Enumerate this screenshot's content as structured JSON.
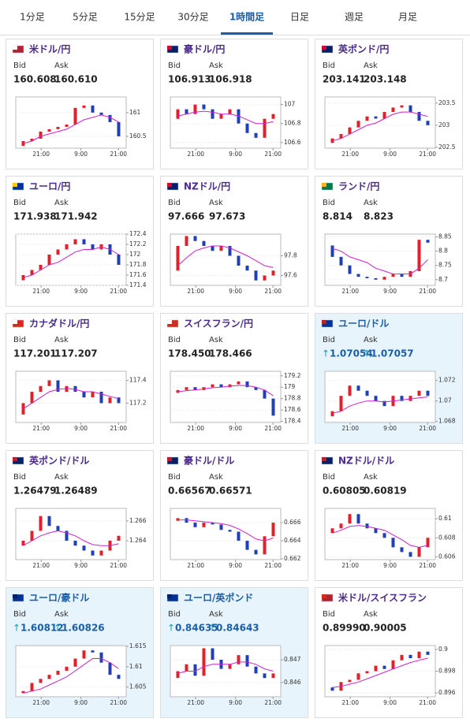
{
  "tabs": {
    "items": [
      "1分足",
      "5分足",
      "15分足",
      "30分足",
      "1時間足",
      "日足",
      "週足",
      "月足"
    ],
    "active": 4
  },
  "labels": {
    "bid": "Bid",
    "ask": "Ask"
  },
  "candle_colors": {
    "up": "#e0202a",
    "down": "#1f3fb4",
    "ma": "#d020d0"
  },
  "cards": [
    {
      "name": "米ドル/円",
      "bid": "160.608",
      "ask": "160.610",
      "chart": {
        "type": "candlestick",
        "ylim": [
          160.25,
          161.33
        ],
        "yticks": [
          161,
          160.5
        ],
        "xticks": [
          "21:00",
          "9:00",
          "21:00"
        ],
        "open": 160.3,
        "closes": [
          160.4,
          160.45,
          160.6,
          160.65,
          160.7,
          160.75,
          161.1,
          161.15,
          161.0,
          160.95,
          160.8,
          160.5
        ],
        "ma": [
          160.35,
          160.4,
          160.5,
          160.55,
          160.6,
          160.65,
          160.75,
          160.85,
          160.9,
          160.95,
          160.9,
          160.8
        ]
      }
    },
    {
      "name": "豪ドル/円",
      "bid": "106.913",
      "ask": "106.918",
      "chart": {
        "type": "candlestick",
        "ylim": [
          106.54,
          107.08
        ],
        "yticks": [
          107,
          106.8,
          106.6
        ],
        "xticks": [
          "21:00",
          "9:00",
          "21:00"
        ],
        "open": 106.85,
        "closes": [
          106.95,
          106.9,
          107.0,
          106.95,
          106.85,
          106.9,
          106.95,
          106.8,
          106.7,
          106.65,
          106.85,
          106.9
        ],
        "ma": [
          106.88,
          106.9,
          106.92,
          106.93,
          106.92,
          106.9,
          106.9,
          106.88,
          106.84,
          106.8,
          106.8,
          106.82
        ]
      }
    },
    {
      "name": "英ポンド/円",
      "bid": "203.141",
      "ask": "203.148",
      "chart": {
        "type": "candlestick",
        "ylim": [
          202.48,
          203.64
        ],
        "yticks": [
          203.5,
          203,
          202.5
        ],
        "xticks": [
          "21:00",
          "9:00",
          "21:00"
        ],
        "open": 202.6,
        "closes": [
          202.7,
          202.8,
          202.95,
          203.1,
          203.2,
          203.15,
          203.3,
          203.4,
          203.45,
          203.3,
          203.1,
          203.0
        ],
        "ma": [
          202.65,
          202.7,
          202.8,
          202.9,
          203.0,
          203.05,
          203.15,
          203.25,
          203.3,
          203.3,
          203.25,
          203.2
        ]
      }
    },
    {
      "name": "ユーロ/円",
      "bid": "171.938",
      "ask": "171.942",
      "chart": {
        "type": "candlestick",
        "ylim": [
          171.4,
          172.4
        ],
        "yticks": [
          172.4,
          172.2,
          172,
          171.8,
          171.6,
          171.4
        ],
        "xticks": [
          "21:00",
          "9:00",
          "21:00"
        ],
        "open": 171.5,
        "closes": [
          171.6,
          171.7,
          171.8,
          172.0,
          172.1,
          172.2,
          172.3,
          172.2,
          172.1,
          172.2,
          172.0,
          171.8
        ],
        "ma": [
          171.55,
          171.6,
          171.7,
          171.8,
          171.85,
          171.95,
          172.05,
          172.1,
          172.1,
          172.15,
          172.1,
          172.0
        ]
      }
    },
    {
      "name": "NZドル/円",
      "bid": "97.666",
      "ask": "97.673",
      "chart": {
        "type": "candlestick",
        "ylim": [
          97.5,
          98.02
        ],
        "yticks": [
          97.8,
          97.6
        ],
        "xticks": [
          "21:00",
          "9:00",
          "21:00"
        ],
        "open": 97.65,
        "closes": [
          97.9,
          98.0,
          97.95,
          97.9,
          97.85,
          97.9,
          97.8,
          97.7,
          97.65,
          97.55,
          97.6,
          97.65
        ],
        "ma": [
          97.7,
          97.78,
          97.85,
          97.88,
          97.9,
          97.9,
          97.88,
          97.84,
          97.8,
          97.75,
          97.7,
          97.68
        ]
      }
    },
    {
      "name": "ランド/円",
      "bid": "8.814",
      "ask": "8.823",
      "chart": {
        "type": "candlestick",
        "ylim": [
          8.68,
          8.86
        ],
        "yticks": [
          8.85,
          8.8,
          8.75,
          8.7
        ],
        "xticks": [
          "21:00",
          "9:00",
          "21:00"
        ],
        "open": 8.82,
        "closes": [
          8.78,
          8.75,
          8.72,
          8.71,
          8.705,
          8.7,
          8.71,
          8.72,
          8.71,
          8.73,
          8.84,
          8.83
        ],
        "ma": [
          8.81,
          8.8,
          8.78,
          8.77,
          8.76,
          8.74,
          8.73,
          8.72,
          8.72,
          8.72,
          8.74,
          8.77
        ]
      }
    },
    {
      "name": "カナダドル/円",
      "bid": "117.201",
      "ask": "117.207",
      "chart": {
        "type": "candlestick",
        "ylim": [
          117.03,
          117.48
        ],
        "yticks": [
          117.4,
          117.2
        ],
        "xticks": [
          "21:00",
          "9:00",
          "21:00"
        ],
        "open": 117.1,
        "closes": [
          117.2,
          117.3,
          117.35,
          117.4,
          117.3,
          117.35,
          117.3,
          117.25,
          117.3,
          117.2,
          117.25,
          117.2
        ],
        "ma": [
          117.15,
          117.2,
          117.25,
          117.3,
          117.32,
          117.33,
          117.32,
          117.3,
          117.3,
          117.28,
          117.26,
          117.24
        ]
      }
    },
    {
      "name": "スイスフラン/円",
      "bid": "178.450",
      "ask": "178.466",
      "chart": {
        "type": "candlestick",
        "ylim": [
          178.38,
          179.28
        ],
        "yticks": [
          179.2,
          179,
          178.8,
          178.6,
          178.4
        ],
        "xticks": [
          "21:00",
          "9:00",
          "21:00"
        ],
        "open": 178.9,
        "closes": [
          178.95,
          179.0,
          178.95,
          179.0,
          179.05,
          179.0,
          179.05,
          179.1,
          179.0,
          178.95,
          178.8,
          178.5
        ],
        "ma": [
          178.92,
          178.94,
          178.95,
          178.97,
          178.99,
          179.0,
          179.02,
          179.03,
          179.03,
          179.0,
          178.95,
          178.85
        ]
      }
    },
    {
      "name": "ユーロ/ドル",
      "highlight": true,
      "arrow": "↑",
      "bid": "1.07054",
      "ask": "1.07057",
      "chart": {
        "type": "candlestick",
        "ylim": [
          1.0679,
          1.0729
        ],
        "yticks": [
          1.072,
          1.07,
          1.068
        ],
        "xticks": [
          "21:00",
          "9:00",
          "21:00"
        ],
        "open": 1.0685,
        "closes": [
          1.069,
          1.0705,
          1.0715,
          1.071,
          1.0705,
          1.07,
          1.0695,
          1.0705,
          1.07,
          1.0705,
          1.071,
          1.0705
        ],
        "ma": [
          1.0688,
          1.069,
          1.0695,
          1.0698,
          1.07,
          1.07,
          1.0699,
          1.07,
          1.0701,
          1.0702,
          1.0703,
          1.0704
        ]
      }
    },
    {
      "name": "英ポンド/ドル",
      "bid": "1.26479",
      "ask": "1.26489",
      "chart": {
        "type": "candlestick",
        "ylim": [
          1.26208,
          1.26728
        ],
        "yticks": [
          1.266,
          1.264
        ],
        "xticks": [
          "21:00",
          "9:00",
          "21:00"
        ],
        "open": 1.2635,
        "closes": [
          1.264,
          1.265,
          1.2665,
          1.2655,
          1.265,
          1.264,
          1.2635,
          1.263,
          1.2625,
          1.263,
          1.264,
          1.2645
        ],
        "ma": [
          1.2635,
          1.264,
          1.2645,
          1.2648,
          1.265,
          1.2648,
          1.2645,
          1.264,
          1.2636,
          1.2635,
          1.2635,
          1.2637
        ]
      }
    },
    {
      "name": "豪ドル/ドル",
      "bid": "0.66567",
      "ask": "0.66571",
      "chart": {
        "type": "candlestick",
        "ylim": [
          0.66192,
          0.66757
        ],
        "yticks": [
          0.666,
          0.664,
          0.662
        ],
        "xticks": [
          "21:00",
          "9:00",
          "21:00"
        ],
        "open": 0.6662,
        "closes": [
          0.6665,
          0.666,
          0.6655,
          0.666,
          0.6658,
          0.6652,
          0.665,
          0.664,
          0.663,
          0.6625,
          0.6645,
          0.666
        ],
        "ma": [
          0.6663,
          0.6663,
          0.6662,
          0.6661,
          0.666,
          0.6659,
          0.6657,
          0.6653,
          0.6648,
          0.6642,
          0.664,
          0.6643
        ]
      }
    },
    {
      "name": "NZドル/ドル",
      "bid": "0.60805",
      "ask": "0.60819",
      "chart": {
        "type": "candlestick",
        "ylim": [
          0.6057,
          0.6111
        ],
        "yticks": [
          0.61,
          0.608,
          0.606
        ],
        "xticks": [
          "21:00",
          "9:00",
          "21:00"
        ],
        "open": 0.6085,
        "closes": [
          0.609,
          0.6095,
          0.6105,
          0.6095,
          0.609,
          0.6085,
          0.608,
          0.607,
          0.6065,
          0.606,
          0.607,
          0.608
        ],
        "ma": [
          0.6085,
          0.6088,
          0.6092,
          0.6093,
          0.6092,
          0.609,
          0.6088,
          0.6083,
          0.6078,
          0.6072,
          0.607,
          0.6072
        ]
      }
    },
    {
      "name": "ユーロ/豪ドル",
      "highlight": true,
      "arrow": "↑",
      "bid": "1.60812",
      "ask": "1.60826",
      "chart": {
        "type": "candlestick",
        "ylim": [
          1.6026,
          1.6152
        ],
        "yticks": [
          1.615,
          1.61,
          1.605
        ],
        "xticks": [
          "21:00",
          "9:00",
          "21:00"
        ],
        "open": 1.6035,
        "closes": [
          1.604,
          1.606,
          1.607,
          1.608,
          1.609,
          1.61,
          1.612,
          1.614,
          1.6135,
          1.611,
          1.608,
          1.607
        ],
        "ma": [
          1.6035,
          1.604,
          1.6045,
          1.6055,
          1.6065,
          1.6075,
          1.609,
          1.6105,
          1.612,
          1.612,
          1.611,
          1.6095
        ]
      }
    },
    {
      "name": "ユーロ/英ポンド",
      "highlight": true,
      "arrow": "↑",
      "bid": "0.84635",
      "ask": "0.84643",
      "chart": {
        "type": "candlestick",
        "ylim": [
          0.84538,
          0.84762
        ],
        "yticks": [
          0.847,
          0.846
        ],
        "xticks": [
          "21:00",
          "9:00",
          "21:00"
        ],
        "open": 0.8462,
        "closes": [
          0.8465,
          0.8468,
          0.8463,
          0.8475,
          0.847,
          0.8466,
          0.8468,
          0.8472,
          0.8467,
          0.8464,
          0.8462,
          0.8464
        ],
        "ma": [
          0.8464,
          0.8465,
          0.8465,
          0.8467,
          0.8468,
          0.8468,
          0.8468,
          0.8469,
          0.8469,
          0.8468,
          0.8466,
          0.8465
        ]
      }
    },
    {
      "name": "米ドル/スイスフラン",
      "bid": "0.89990",
      "ask": "0.90005",
      "chart": {
        "type": "candlestick",
        "ylim": [
          0.89564,
          0.90036
        ],
        "yticks": [
          0.9,
          0.898,
          0.896
        ],
        "xticks": [
          "21:00",
          "9:00",
          "21:00"
        ],
        "open": 0.8965,
        "closes": [
          0.8962,
          0.897,
          0.8972,
          0.8978,
          0.898,
          0.8985,
          0.8982,
          0.899,
          0.8995,
          0.8992,
          0.8998,
          0.8995
        ],
        "ma": [
          0.8965,
          0.8966,
          0.8968,
          0.897,
          0.8973,
          0.8976,
          0.8979,
          0.8982,
          0.8985,
          0.8988,
          0.899,
          0.8992
        ]
      }
    }
  ]
}
